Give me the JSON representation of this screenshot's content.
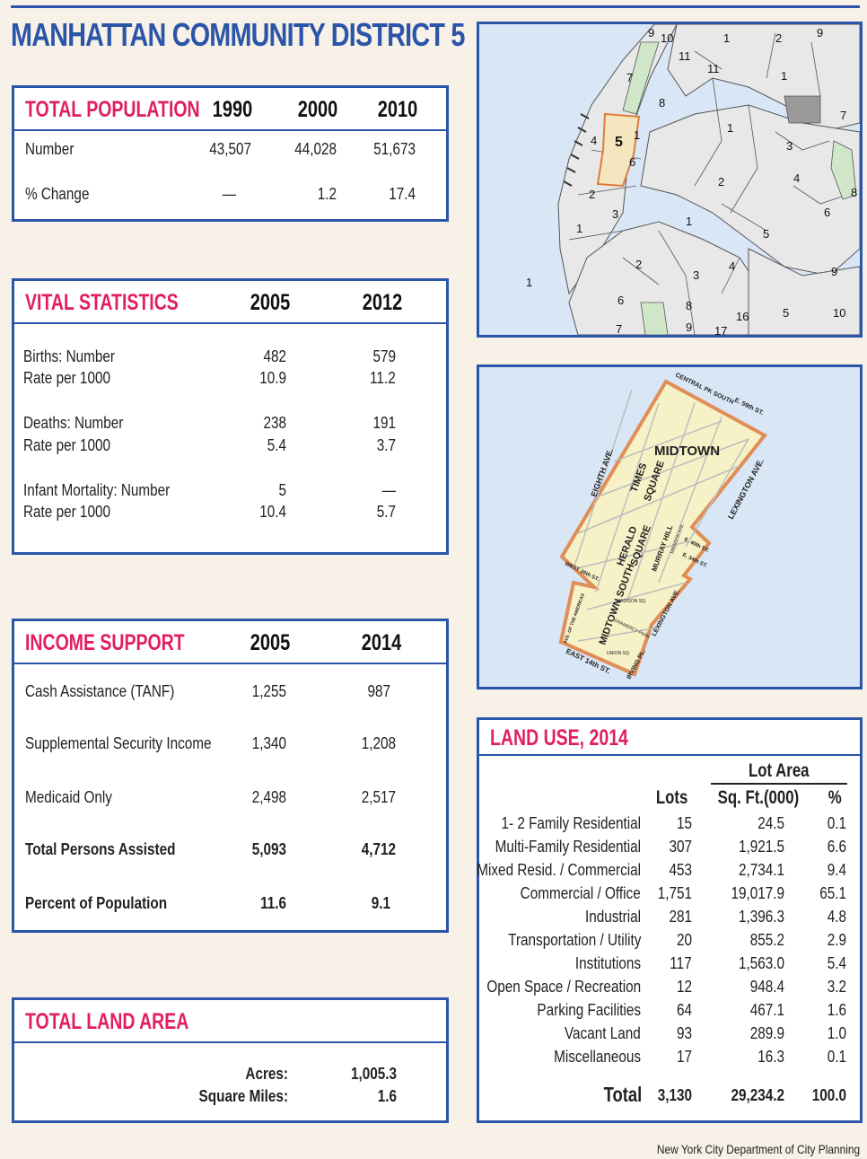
{
  "page_title": "MANHATTAN COMMUNITY DISTRICT 5",
  "total_population": {
    "title": "TOTAL POPULATION",
    "years": [
      "1990",
      "2000",
      "2010"
    ],
    "rows": [
      {
        "label": "Number",
        "values": [
          "43,507",
          "44,028",
          "51,673"
        ]
      },
      {
        "label": "% Change",
        "values": [
          "—",
          "1.2",
          "17.4"
        ]
      }
    ]
  },
  "vital_statistics": {
    "title": "VITAL STATISTICS",
    "years": [
      "2005",
      "2012"
    ],
    "groups": [
      {
        "label1": "Births: Number",
        "label2": "Rate per 1000",
        "v2005": [
          "482",
          "10.9"
        ],
        "v2012": [
          "579",
          "11.2"
        ]
      },
      {
        "label1": "Deaths: Number",
        "label2": "Rate per 1000",
        "v2005": [
          "238",
          "5.4"
        ],
        "v2012": [
          "191",
          "3.7"
        ]
      },
      {
        "label1": "Infant Mortality: Number",
        "label2": "Rate per 1000",
        "v2005": [
          "5",
          "10.4"
        ],
        "v2012": [
          "—",
          "5.7"
        ]
      }
    ]
  },
  "income_support": {
    "title": "INCOME SUPPORT",
    "years": [
      "2005",
      "2014"
    ],
    "rows": [
      {
        "label": "Cash Assistance (TANF)",
        "values": [
          "1,255",
          "987"
        ]
      },
      {
        "label": "Supplemental Security Income",
        "values": [
          "1,340",
          "1,208"
        ]
      },
      {
        "label": "Medicaid Only",
        "values": [
          "2,498",
          "2,517"
        ]
      },
      {
        "label": "Total Persons Assisted",
        "values": [
          "5,093",
          "4,712"
        ]
      },
      {
        "label": "Percent of Population",
        "values": [
          "11.6",
          "9.1"
        ]
      }
    ]
  },
  "total_land_area": {
    "title": "TOTAL LAND AREA",
    "rows": [
      {
        "label": "Acres:",
        "value": "1,005.3"
      },
      {
        "label": "Square Miles:",
        "value": "1.6"
      }
    ]
  },
  "land_use": {
    "title": "LAND USE, 2014",
    "group_header": "Lot Area",
    "columns": [
      "Lots",
      "Sq. Ft.(000)",
      "%"
    ],
    "rows": [
      {
        "label": "1- 2 Family Residential",
        "lots": "15",
        "sqft": "24.5",
        "pct": "0.1"
      },
      {
        "label": "Multi-Family Residential",
        "lots": "307",
        "sqft": "1,921.5",
        "pct": "6.6"
      },
      {
        "label": "Mixed Resid. / Commercial",
        "lots": "453",
        "sqft": "2,734.1",
        "pct": "9.4"
      },
      {
        "label": "Commercial / Office",
        "lots": "1,751",
        "sqft": "19,017.9",
        "pct": "65.1"
      },
      {
        "label": "Industrial",
        "lots": "281",
        "sqft": "1,396.3",
        "pct": "4.8"
      },
      {
        "label": "Transportation / Utility",
        "lots": "20",
        "sqft": "855.2",
        "pct": "2.9"
      },
      {
        "label": "Institutions",
        "lots": "117",
        "sqft": "1,563.0",
        "pct": "5.4"
      },
      {
        "label": "Open Space / Recreation",
        "lots": "12",
        "sqft": "948.4",
        "pct": "3.2"
      },
      {
        "label": "Parking Facilities",
        "lots": "64",
        "sqft": "467.1",
        "pct": "1.6"
      },
      {
        "label": "Vacant Land",
        "lots": "93",
        "sqft": "289.9",
        "pct": "1.0"
      },
      {
        "label": "Miscellaneous",
        "lots": "17",
        "sqft": "16.3",
        "pct": "0.1"
      }
    ],
    "total": {
      "label": "Total",
      "lots": "3,130",
      "sqft": "29,234.2",
      "pct": "100.0"
    }
  },
  "borough_map": {
    "district_numbers": [
      "9",
      "10",
      "1",
      "2",
      "9",
      "11",
      "11",
      "1",
      "7",
      "8",
      "7",
      "1",
      "1",
      "4",
      "5",
      "6",
      "3",
      "2",
      "4",
      "8",
      "2",
      "3",
      "6",
      "1",
      "5",
      "1",
      "1",
      "2",
      "3",
      "4",
      "9",
      "6",
      "8",
      "16",
      "5",
      "10",
      "9",
      "7",
      "17"
    ]
  },
  "district_map": {
    "labels": {
      "central_pk": "CENTRAL PK SOUTH",
      "e59": "E. 59th ST.",
      "midtown": "MIDTOWN",
      "eighth": "EIGHTH AVE.",
      "times": "TIMES",
      "square1": "SQUARE",
      "lexington1": "LEXINGTON AVE.",
      "herald": "HERALD",
      "square2": "SQUARE",
      "murray": "MURRAY HILL",
      "madison": "MADISON AVE.",
      "e40": "E. 40th ST.",
      "e34": "E. 34th ST.",
      "west26": "WEST 26th ST.",
      "midtown_south": "MIDTOWN SOUTH",
      "madison_sq": "MADISON SQ.",
      "gramercy": "GRAMERCY PARK",
      "lexington2": "LEXINGTON AVE.",
      "americas": "AVE. OF THE AMERICAS",
      "union_sq": "UNION SQ.",
      "east14": "EAST 14th ST.",
      "irving": "IRVING PL."
    }
  },
  "footer": "New York City Department of City Planning"
}
